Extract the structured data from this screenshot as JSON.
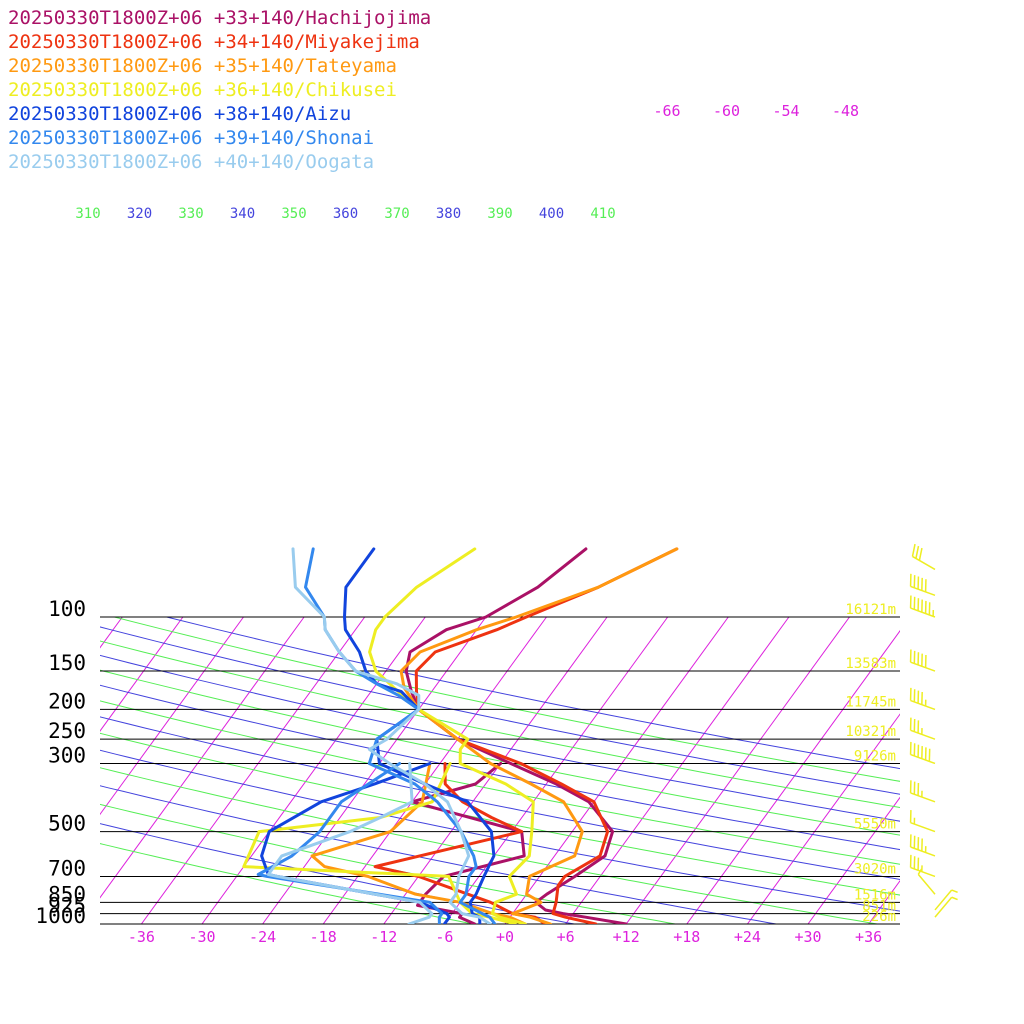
{
  "chart_data": {
    "type": "line",
    "title": "",
    "xlabel": "",
    "ylabel": "",
    "y_scale": "log",
    "ylim": [
      1000,
      100
    ],
    "xlim": [
      -40,
      40
    ],
    "x_tick_labels": [
      "-36",
      "-30",
      "-24",
      "-18",
      "-12",
      "-6",
      "+0",
      "+6",
      "+12",
      "+18",
      "+24",
      "+30",
      "+36"
    ],
    "pressure_levels": [
      {
        "p": 100,
        "label": "100",
        "height": "16121m"
      },
      {
        "p": 150,
        "label": "150",
        "height": "13583m"
      },
      {
        "p": 200,
        "label": "200",
        "height": "11745m"
      },
      {
        "p": 250,
        "label": "250",
        "height": "10321m"
      },
      {
        "p": 300,
        "label": "300",
        "height": "9126m"
      },
      {
        "p": 500,
        "label": "500",
        "height": "5550m"
      },
      {
        "p": 700,
        "label": "700",
        "height": "3020m"
      },
      {
        "p": 850,
        "label": "850",
        "height": "1516m"
      },
      {
        "p": 925,
        "label": "925",
        "height": "851m"
      },
      {
        "p": 1000,
        "label": "1000",
        "height": "226m"
      }
    ],
    "theta_labels": [
      {
        "t": "310",
        "c": "#55ee55"
      },
      {
        "t": "320",
        "c": "#4444dd"
      },
      {
        "t": "330",
        "c": "#55ee55"
      },
      {
        "t": "340",
        "c": "#4444dd"
      },
      {
        "t": "350",
        "c": "#55ee55"
      },
      {
        "t": "360",
        "c": "#4444dd"
      },
      {
        "t": "370",
        "c": "#55ee55"
      },
      {
        "t": "380",
        "c": "#4444dd"
      },
      {
        "t": "390",
        "c": "#55ee55"
      },
      {
        "t": "400",
        "c": "#4444dd"
      },
      {
        "t": "410",
        "c": "#55ee55"
      }
    ],
    "upper_temp_labels": [
      "-66",
      "-60",
      "-54",
      "-48"
    ],
    "colors": {
      "isotherm": "#dd22dd",
      "theta_a": "#55ee55",
      "theta_b": "#4444dd",
      "height_text": "#eeee22",
      "wind_barb": "#eeee22",
      "pressure_line": "#000000"
    },
    "series": [
      {
        "name": "20250330T1800Z+06 +33+140/Hachijojima",
        "color": "#aa1166",
        "temperature": [
          [
            1000,
            12
          ],
          [
            950,
            7.5
          ],
          [
            925,
            5
          ],
          [
            900,
            3
          ],
          [
            850,
            1.5
          ],
          [
            800,
            2
          ],
          [
            700,
            3.5
          ],
          [
            600,
            5
          ],
          [
            500,
            4
          ],
          [
            400,
            -0.5
          ],
          [
            350,
            -5
          ],
          [
            300,
            -11
          ],
          [
            250,
            -18
          ],
          [
            200,
            -24
          ],
          [
            175,
            -26
          ],
          [
            150,
            -28
          ],
          [
            130,
            -29
          ],
          [
            110,
            -27
          ],
          [
            100,
            -24
          ],
          [
            80,
            -21
          ],
          [
            60,
            -19
          ]
        ],
        "dewpoint": [
          [
            1000,
            -3
          ],
          [
            950,
            -5
          ],
          [
            925,
            -5
          ],
          [
            870,
            -10
          ],
          [
            850,
            -10
          ],
          [
            800,
            -10
          ],
          [
            700,
            -9.5
          ],
          [
            600,
            -3
          ],
          [
            500,
            -5
          ],
          [
            400,
            -18
          ],
          [
            350,
            -13
          ],
          [
            300,
            -12
          ]
        ]
      },
      {
        "name": "20250330T1800Z+06 +34+140/Miyakejima",
        "color": "#ee3311",
        "temperature": [
          [
            1000,
            9
          ],
          [
            950,
            5.5
          ],
          [
            925,
            4
          ],
          [
            850,
            3.5
          ],
          [
            750,
            2.5
          ],
          [
            700,
            2.5
          ],
          [
            600,
            4.5
          ],
          [
            500,
            3.5
          ],
          [
            400,
            0
          ],
          [
            350,
            -4.5
          ],
          [
            300,
            -10
          ],
          [
            250,
            -18
          ],
          [
            200,
            -24
          ],
          [
            175,
            -25.5
          ],
          [
            150,
            -27
          ],
          [
            130,
            -26.5
          ],
          [
            110,
            -22
          ],
          [
            100,
            -20
          ],
          [
            80,
            -15
          ],
          [
            60,
            -10
          ]
        ],
        "dewpoint": [
          [
            1000,
            4
          ],
          [
            950,
            2.5
          ],
          [
            925,
            0
          ],
          [
            850,
            -3
          ],
          [
            700,
            -12
          ],
          [
            650,
            -17
          ],
          [
            500,
            -5
          ],
          [
            450,
            -9
          ],
          [
            400,
            -13
          ],
          [
            350,
            -16
          ],
          [
            300,
            -17.5
          ]
        ]
      },
      {
        "name": "20250330T1800Z+06 +35+140/Tateyama",
        "color": "#ff9911",
        "temperature": [
          [
            1000,
            4.5
          ],
          [
            950,
            2
          ],
          [
            925,
            0
          ],
          [
            850,
            2
          ],
          [
            800,
            0
          ],
          [
            700,
            -1
          ],
          [
            600,
            2
          ],
          [
            500,
            1
          ],
          [
            400,
            -3
          ],
          [
            350,
            -7.5
          ],
          [
            300,
            -13
          ],
          [
            250,
            -18
          ],
          [
            200,
            -24
          ],
          [
            170,
            -27
          ],
          [
            150,
            -28.5
          ],
          [
            130,
            -28
          ],
          [
            110,
            -24
          ],
          [
            100,
            -21
          ],
          [
            80,
            -15
          ],
          [
            60,
            -10
          ]
        ],
        "dewpoint": [
          [
            1000,
            2
          ],
          [
            950,
            0
          ],
          [
            925,
            -2
          ],
          [
            850,
            -6
          ],
          [
            800,
            -11
          ],
          [
            700,
            -17
          ],
          [
            650,
            -22
          ],
          [
            600,
            -24
          ],
          [
            500,
            -18
          ],
          [
            400,
            -17
          ],
          [
            300,
            -19
          ]
        ]
      },
      {
        "name": "20250330T1800Z+06 +36+140/Chikusei",
        "color": "#eeee22",
        "temperature": [
          [
            1000,
            2
          ],
          [
            950,
            -1
          ],
          [
            925,
            -2
          ],
          [
            850,
            -2.5
          ],
          [
            800,
            -1
          ],
          [
            700,
            -3
          ],
          [
            600,
            -2.5
          ],
          [
            500,
            -4
          ],
          [
            400,
            -6
          ],
          [
            350,
            -10
          ],
          [
            300,
            -16
          ],
          [
            270,
            -17
          ],
          [
            250,
            -17
          ],
          [
            200,
            -24
          ],
          [
            170,
            -28
          ],
          [
            150,
            -31
          ],
          [
            130,
            -33
          ],
          [
            110,
            -34
          ],
          [
            100,
            -34
          ],
          [
            80,
            -33
          ],
          [
            60,
            -30
          ]
        ],
        "dewpoint": [
          [
            1000,
            1
          ],
          [
            950,
            -2
          ],
          [
            925,
            -4
          ],
          [
            850,
            -6
          ],
          [
            700,
            -9
          ],
          [
            650,
            -30
          ],
          [
            500,
            -31
          ],
          [
            450,
            -20
          ],
          [
            400,
            -16
          ],
          [
            300,
            -17
          ]
        ]
      },
      {
        "name": "20250330T1800Z+06 +38+140/Aizu",
        "color": "#1144dd",
        "temperature": [
          [
            1000,
            -2.5
          ],
          [
            950,
            -3
          ],
          [
            925,
            -4
          ],
          [
            850,
            -5
          ],
          [
            800,
            -5
          ],
          [
            700,
            -5.5
          ],
          [
            600,
            -6
          ],
          [
            500,
            -8
          ],
          [
            400,
            -12.5
          ],
          [
            350,
            -18
          ],
          [
            300,
            -24
          ],
          [
            250,
            -26
          ],
          [
            200,
            -24
          ],
          [
            175,
            -27
          ],
          [
            165,
            -30
          ],
          [
            150,
            -32
          ],
          [
            130,
            -34
          ],
          [
            110,
            -37
          ],
          [
            100,
            -38
          ],
          [
            80,
            -40
          ],
          [
            60,
            -40
          ]
        ],
        "dewpoint": [
          [
            1000,
            -6
          ],
          [
            950,
            -6
          ],
          [
            925,
            -6.5
          ],
          [
            850,
            -10
          ],
          [
            700,
            -26
          ],
          [
            690,
            -27
          ],
          [
            600,
            -29
          ],
          [
            500,
            -30
          ],
          [
            400,
            -27
          ],
          [
            350,
            -23
          ],
          [
            300,
            -19
          ]
        ]
      },
      {
        "name": "20250330T1800Z+06 +39+140/Shonai",
        "color": "#3388ee",
        "temperature": [
          [
            1000,
            -1
          ],
          [
            950,
            -2
          ],
          [
            925,
            -3
          ],
          [
            850,
            -6
          ],
          [
            800,
            -6
          ],
          [
            700,
            -7
          ],
          [
            650,
            -7
          ],
          [
            600,
            -8
          ],
          [
            500,
            -11
          ],
          [
            400,
            -15.5
          ],
          [
            350,
            -19
          ],
          [
            300,
            -25
          ],
          [
            250,
            -26
          ],
          [
            200,
            -24
          ],
          [
            180,
            -27
          ],
          [
            165,
            -30
          ],
          [
            150,
            -33
          ],
          [
            130,
            -36
          ],
          [
            110,
            -39
          ],
          [
            100,
            -40
          ],
          [
            80,
            -44
          ],
          [
            60,
            -46
          ]
        ],
        "dewpoint": [
          [
            1000,
            -6.5
          ],
          [
            950,
            -7
          ],
          [
            925,
            -7
          ],
          [
            850,
            -9
          ],
          [
            700,
            -27
          ],
          [
            690,
            -28
          ],
          [
            600,
            -26
          ],
          [
            500,
            -25
          ],
          [
            400,
            -25
          ],
          [
            300,
            -22
          ]
        ]
      },
      {
        "name": "20250330T1800Z+06 +40+140/Oogata",
        "color": "#99ccee",
        "temperature": [
          [
            1000,
            -1.5
          ],
          [
            950,
            -3
          ],
          [
            925,
            -5
          ],
          [
            850,
            -7
          ],
          [
            800,
            -7
          ],
          [
            700,
            -8
          ],
          [
            600,
            -8.5
          ],
          [
            500,
            -11
          ],
          [
            400,
            -14.5
          ],
          [
            350,
            -18
          ],
          [
            300,
            -23
          ],
          [
            270,
            -26
          ],
          [
            250,
            -25
          ],
          [
            200,
            -24
          ],
          [
            180,
            -25
          ],
          [
            165,
            -28
          ],
          [
            150,
            -33
          ],
          [
            130,
            -36
          ],
          [
            110,
            -39
          ],
          [
            100,
            -40
          ],
          [
            80,
            -45
          ],
          [
            60,
            -48
          ]
        ],
        "dewpoint": [
          [
            1000,
            -9.5
          ],
          [
            950,
            -8
          ],
          [
            925,
            -8
          ],
          [
            850,
            -10
          ],
          [
            700,
            -26
          ],
          [
            690,
            -27
          ],
          [
            600,
            -27
          ],
          [
            500,
            -22
          ],
          [
            450,
            -20
          ],
          [
            400,
            -18
          ],
          [
            300,
            -21
          ]
        ]
      }
    ],
    "wind_barbs": [
      {
        "p": 70,
        "dir": 300,
        "spd": 30
      },
      {
        "p": 85,
        "dir": 290,
        "spd": 50
      },
      {
        "p": 100,
        "dir": 290,
        "spd": 65
      },
      {
        "p": 150,
        "dir": 290,
        "spd": 50
      },
      {
        "p": 200,
        "dir": 290,
        "spd": 45
      },
      {
        "p": 250,
        "dir": 290,
        "spd": 35
      },
      {
        "p": 300,
        "dir": 290,
        "spd": 60
      },
      {
        "p": 400,
        "dir": 290,
        "spd": 35
      },
      {
        "p": 500,
        "dir": 290,
        "spd": 15
      },
      {
        "p": 600,
        "dir": 290,
        "spd": 45
      },
      {
        "p": 700,
        "dir": 290,
        "spd": 35
      },
      {
        "p": 800,
        "dir": 320,
        "spd": 5
      },
      {
        "p": 900,
        "dir": 40,
        "spd": 5
      },
      {
        "p": 950,
        "dir": 40,
        "spd": 5
      }
    ]
  }
}
